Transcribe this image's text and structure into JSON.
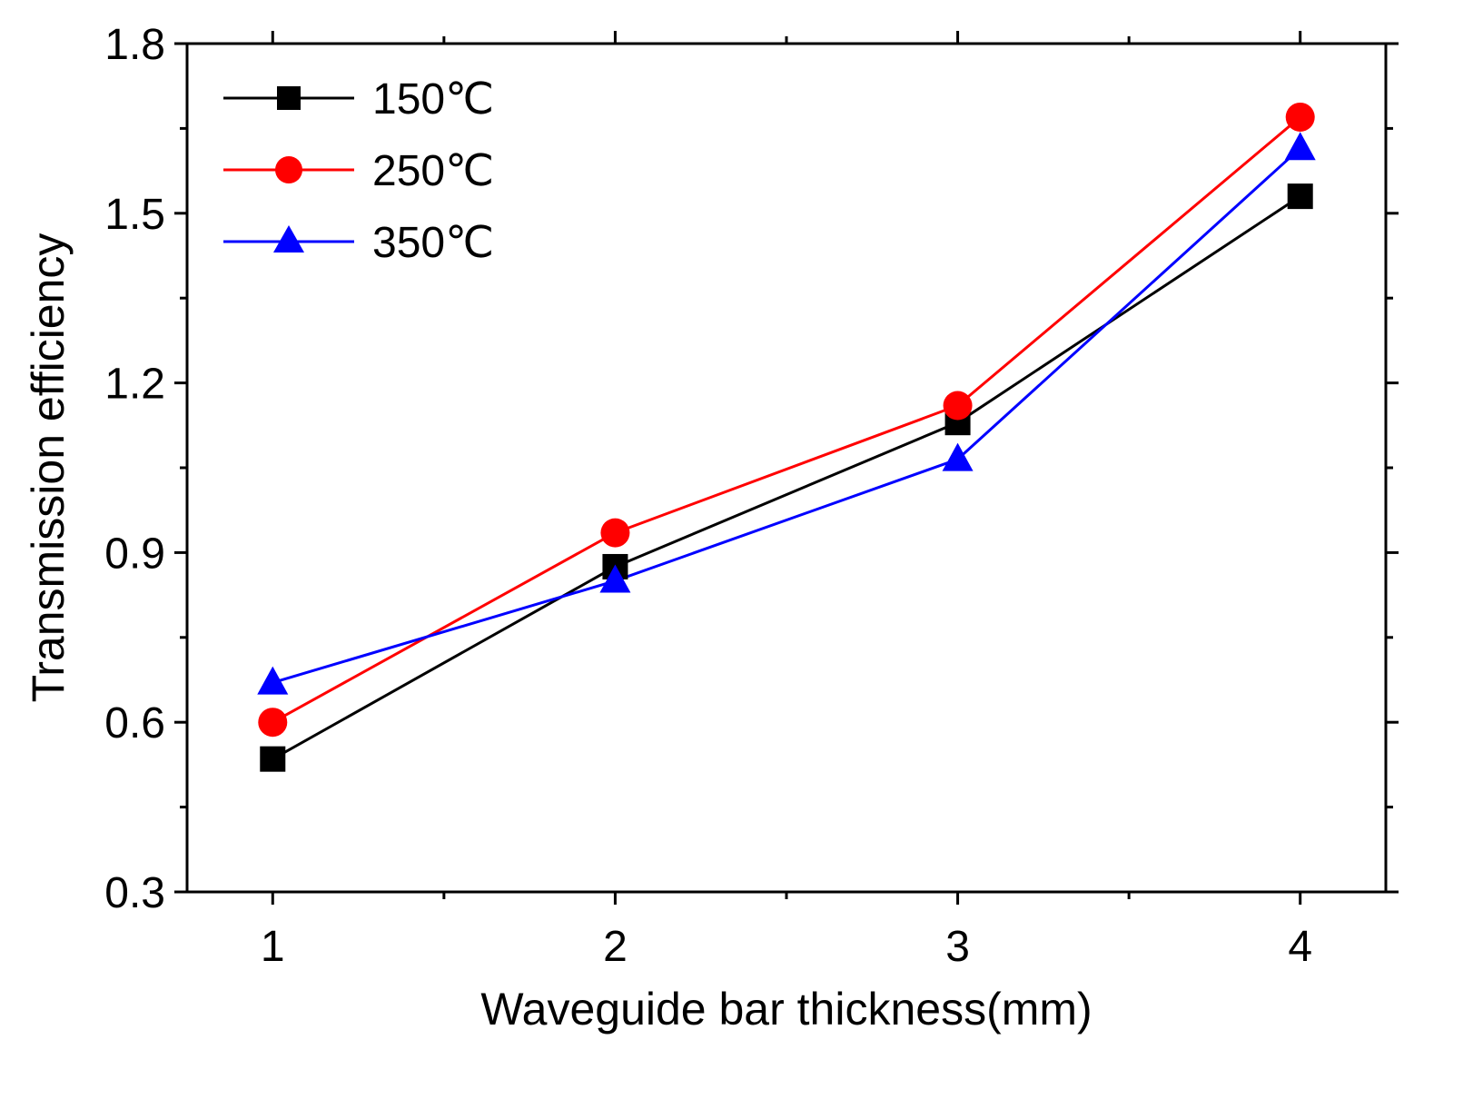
{
  "chart_data": {
    "type": "line",
    "title": "",
    "xlabel": "Waveguide bar thickness(mm)",
    "ylabel": "Transmission efficiency",
    "x": [
      1,
      2,
      3,
      4
    ],
    "xlim": [
      0.75,
      4.25
    ],
    "ylim": [
      0.3,
      1.8
    ],
    "xticks": [
      1,
      2,
      3,
      4
    ],
    "xtick_labels": [
      "1",
      "2",
      "3",
      "4"
    ],
    "yticks": [
      0.3,
      0.6,
      0.9,
      1.2,
      1.5,
      1.8
    ],
    "ytick_labels": [
      "0.3",
      "0.6",
      "0.9",
      "1.2",
      "1.5",
      "1.8"
    ],
    "grid": false,
    "legend_position": "top-left",
    "series": [
      {
        "name": "150℃",
        "color": "#000000",
        "marker": "square",
        "values": [
          0.535,
          0.875,
          1.13,
          1.53
        ]
      },
      {
        "name": "250℃",
        "color": "#ff0000",
        "marker": "circle",
        "values": [
          0.6,
          0.935,
          1.16,
          1.67
        ]
      },
      {
        "name": "350℃",
        "color": "#0000ff",
        "marker": "triangle",
        "values": [
          0.67,
          0.85,
          1.065,
          1.615
        ]
      }
    ]
  }
}
